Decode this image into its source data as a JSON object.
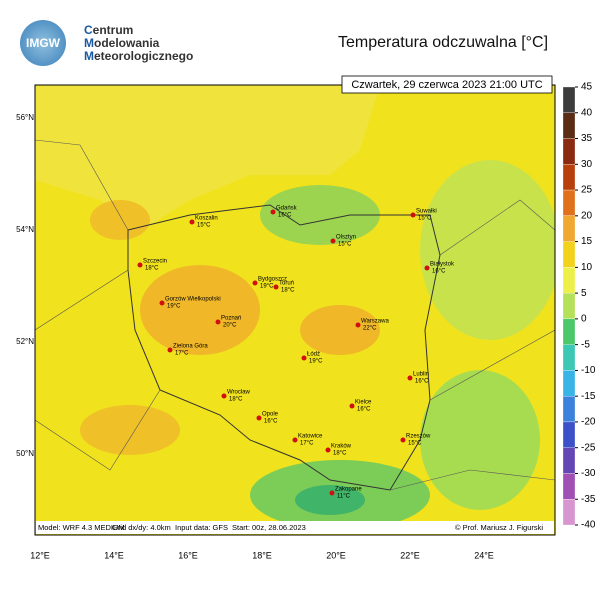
{
  "logo": {
    "badge": "IMGW",
    "lines": [
      "Centrum",
      "Modelowania",
      "Meteorologicznego"
    ]
  },
  "title": "Temperatura odczuwalna [°C]",
  "subtitle": "Czwartek, 29 czerwca 2023 21:00 UTC",
  "lat_labels": [
    "56°N",
    "54°N",
    "52°N",
    "50°N"
  ],
  "lon_labels": [
    "12°E",
    "14°E",
    "16°E",
    "18°E",
    "20°E",
    "22°E",
    "24°E"
  ],
  "colorbar": {
    "ticks": [
      45,
      40,
      35,
      30,
      25,
      20,
      15,
      10,
      5,
      0,
      -5,
      -10,
      -15,
      -20,
      -25,
      -30,
      -35,
      -40
    ],
    "colors": [
      "#3c3c3c",
      "#5a2c14",
      "#8a2a10",
      "#b8400c",
      "#e0701c",
      "#f0a830",
      "#f2d21c",
      "#eef04a",
      "#b4e05a",
      "#4cc86a",
      "#3cc8b4",
      "#38b4e6",
      "#3c82dc",
      "#3c50c8",
      "#6446b4",
      "#a050b4",
      "#d896d0"
    ]
  },
  "cities": [
    {
      "name": "Koszalin",
      "temp": "15°C"
    },
    {
      "name": "Gdańsk",
      "temp": "16°C"
    },
    {
      "name": "Suwałki",
      "temp": "15°C"
    },
    {
      "name": "Olsztyn",
      "temp": "15°C"
    },
    {
      "name": "Szczecin",
      "temp": "18°C"
    },
    {
      "name": "Białystok",
      "temp": "16°C"
    },
    {
      "name": "Bydgoszcz",
      "temp": "19°C"
    },
    {
      "name": "Toruń",
      "temp": "18°C"
    },
    {
      "name": "Gorzów Wielkopolski",
      "temp": "19°C"
    },
    {
      "name": "Poznań",
      "temp": "20°C"
    },
    {
      "name": "Warszawa",
      "temp": "22°C"
    },
    {
      "name": "Zielona Góra",
      "temp": "17°C"
    },
    {
      "name": "Łódź",
      "temp": "19°C"
    },
    {
      "name": "Lublin",
      "temp": "16°C"
    },
    {
      "name": "Wrocław",
      "temp": "18°C"
    },
    {
      "name": "Kielce",
      "temp": "16°C"
    },
    {
      "name": "Opole",
      "temp": "16°C"
    },
    {
      "name": "Katowice",
      "temp": "17°C"
    },
    {
      "name": "Rzeszów",
      "temp": "15°C"
    },
    {
      "name": "Kraków",
      "temp": "18°C"
    },
    {
      "name": "Zakopane",
      "temp": "11°C"
    }
  ],
  "footer": [
    "Model: WRF 4.3 MEDIUM",
    "Grid dx/dy: 4.0km",
    "Input data: GFS",
    "Start: 00z, 28.06.2023",
    "© Prof. Mariusz J. Figurski"
  ]
}
